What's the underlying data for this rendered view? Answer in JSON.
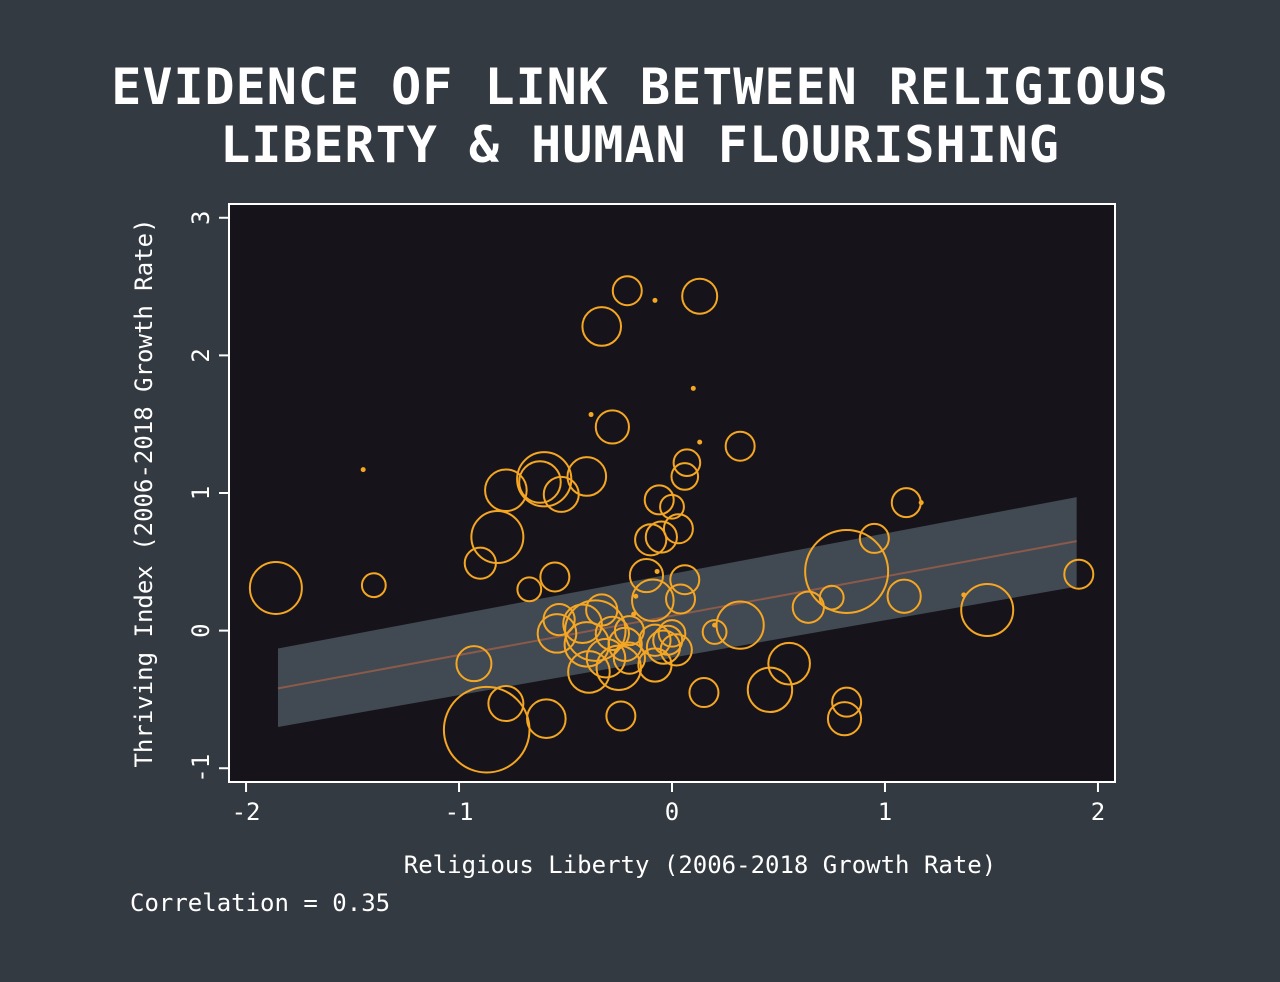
{
  "title": {
    "line1": "EVIDENCE OF LINK BETWEEN RELIGIOUS",
    "line2": "LIBERTY & HUMAN FLOURISHING"
  },
  "footer": {
    "correlation": "Correlation = 0.35"
  },
  "colors": {
    "background": "#343a42",
    "plot_background": "#16141a",
    "marker": "#f5a623",
    "trend_line": "#8a5a4a",
    "confidence_band": "#414952",
    "axis": "#ffffff"
  },
  "chart_data": {
    "type": "scatter",
    "title": "EVIDENCE OF LINK BETWEEN RELIGIOUS LIBERTY & HUMAN FLOURISHING",
    "xlabel": "Religious Liberty (2006-2018 Growth Rate)",
    "ylabel": "Thriving Index (2006-2018 Growth Rate)",
    "xlim": [
      -2.08,
      2.08
    ],
    "ylim": [
      -1.1,
      3.1
    ],
    "xticks": [
      -2,
      -1,
      0,
      1,
      2
    ],
    "yticks": [
      -1,
      0,
      1,
      2,
      3
    ],
    "xtick_labels": [
      "-2",
      "-1",
      "0",
      "1",
      "2"
    ],
    "ytick_labels": [
      "-1",
      "0",
      "1",
      "2",
      "3"
    ],
    "grid": false,
    "legend": "none",
    "marker": "hollow circle, size weighted",
    "correlation": 0.35,
    "trend_line": {
      "x": [
        -1.85,
        1.9
      ],
      "y": [
        -0.42,
        0.65
      ]
    },
    "confidence_band": {
      "x": [
        -1.85,
        1.9
      ],
      "lower": [
        -0.7,
        0.32
      ],
      "upper": [
        -0.13,
        0.97
      ]
    },
    "points": [
      {
        "x": -1.86,
        "y": 0.31,
        "size": 1.0
      },
      {
        "x": -1.45,
        "y": 1.17,
        "size": 0.1
      },
      {
        "x": -1.4,
        "y": 0.33,
        "size": 0.15
      },
      {
        "x": -0.87,
        "y": -0.72,
        "size": 3.0
      },
      {
        "x": -0.78,
        "y": -0.53,
        "size": 0.4
      },
      {
        "x": -0.93,
        "y": -0.24,
        "size": 0.4
      },
      {
        "x": -0.9,
        "y": 0.49,
        "size": 0.3
      },
      {
        "x": -0.82,
        "y": 0.68,
        "size": 1.0
      },
      {
        "x": -0.78,
        "y": 1.02,
        "size": 0.6
      },
      {
        "x": -0.6,
        "y": 1.1,
        "size": 1.1
      },
      {
        "x": -0.62,
        "y": 1.08,
        "size": 0.6
      },
      {
        "x": -0.52,
        "y": 0.99,
        "size": 0.4
      },
      {
        "x": -0.67,
        "y": 0.3,
        "size": 0.15
      },
      {
        "x": -0.55,
        "y": 0.39,
        "size": 0.25
      },
      {
        "x": -0.59,
        "y": -0.64,
        "size": 0.5
      },
      {
        "x": -0.53,
        "y": 0.08,
        "size": 0.3
      },
      {
        "x": -0.54,
        "y": -0.02,
        "size": 0.5
      },
      {
        "x": -0.42,
        "y": 0.05,
        "size": 0.5
      },
      {
        "x": -0.4,
        "y": -0.1,
        "size": 0.7
      },
      {
        "x": -0.39,
        "y": -0.3,
        "size": 0.6
      },
      {
        "x": -0.36,
        "y": 0.0,
        "size": 1.4
      },
      {
        "x": -0.33,
        "y": 0.15,
        "size": 0.3
      },
      {
        "x": -0.31,
        "y": -0.2,
        "size": 0.5
      },
      {
        "x": -0.28,
        "y": -0.02,
        "size": 0.35
      },
      {
        "x": -0.25,
        "y": -0.27,
        "size": 0.7
      },
      {
        "x": -0.22,
        "y": -0.1,
        "size": 0.35
      },
      {
        "x": -0.2,
        "y": -0.2,
        "size": 0.3
      },
      {
        "x": -0.2,
        "y": 0.0,
        "size": 0.25
      },
      {
        "x": -0.24,
        "y": -0.62,
        "size": 0.25
      },
      {
        "x": -0.4,
        "y": 1.12,
        "size": 0.5
      },
      {
        "x": -0.28,
        "y": 1.48,
        "size": 0.35
      },
      {
        "x": -0.38,
        "y": 1.57,
        "size": 0.1
      },
      {
        "x": -0.33,
        "y": 2.21,
        "size": 0.5
      },
      {
        "x": -0.21,
        "y": 2.47,
        "size": 0.25
      },
      {
        "x": -0.08,
        "y": 2.4,
        "size": 0.1
      },
      {
        "x": 0.13,
        "y": 2.43,
        "size": 0.4
      },
      {
        "x": 0.1,
        "y": 1.76,
        "size": 0.1
      },
      {
        "x": 0.13,
        "y": 1.37,
        "size": 0.1
      },
      {
        "x": 0.32,
        "y": 1.34,
        "size": 0.25
      },
      {
        "x": 0.07,
        "y": 1.22,
        "size": 0.2
      },
      {
        "x": 0.06,
        "y": 1.12,
        "size": 0.2
      },
      {
        "x": -0.06,
        "y": 0.95,
        "size": 0.25
      },
      {
        "x": 0.0,
        "y": 0.9,
        "size": 0.15
      },
      {
        "x": 0.03,
        "y": 0.74,
        "size": 0.25
      },
      {
        "x": -0.05,
        "y": 0.68,
        "size": 0.3
      },
      {
        "x": -0.1,
        "y": 0.66,
        "size": 0.3
      },
      {
        "x": -0.07,
        "y": 0.43,
        "size": 0.1
      },
      {
        "x": -0.12,
        "y": 0.4,
        "size": 0.35
      },
      {
        "x": 0.06,
        "y": 0.37,
        "size": 0.25
      },
      {
        "x": -0.17,
        "y": 0.25,
        "size": 0.1
      },
      {
        "x": -0.09,
        "y": 0.22,
        "size": 0.6
      },
      {
        "x": 0.04,
        "y": 0.23,
        "size": 0.25
      },
      {
        "x": -0.18,
        "y": 0.12,
        "size": 0.1
      },
      {
        "x": -0.08,
        "y": -0.07,
        "size": 0.3
      },
      {
        "x": -0.04,
        "y": -0.12,
        "size": 0.35
      },
      {
        "x": -0.02,
        "y": -0.07,
        "size": 0.25
      },
      {
        "x": 0.02,
        "y": -0.14,
        "size": 0.3
      },
      {
        "x": -0.08,
        "y": -0.25,
        "size": 0.35
      },
      {
        "x": 0.0,
        "y": -0.02,
        "size": 0.2
      },
      {
        "x": 0.2,
        "y": -0.01,
        "size": 0.15
      },
      {
        "x": 0.2,
        "y": 0.04,
        "size": 0.1
      },
      {
        "x": 0.32,
        "y": 0.04,
        "size": 0.8
      },
      {
        "x": 0.15,
        "y": -0.45,
        "size": 0.25
      },
      {
        "x": 0.46,
        "y": -0.43,
        "size": 0.7
      },
      {
        "x": 0.55,
        "y": -0.24,
        "size": 0.6
      },
      {
        "x": 0.64,
        "y": 0.17,
        "size": 0.3
      },
      {
        "x": 0.75,
        "y": 0.24,
        "size": 0.15
      },
      {
        "x": 0.82,
        "y": 0.43,
        "size": 2.8
      },
      {
        "x": 0.95,
        "y": 0.67,
        "size": 0.25
      },
      {
        "x": 0.82,
        "y": -0.52,
        "size": 0.25
      },
      {
        "x": 0.81,
        "y": -0.64,
        "size": 0.35
      },
      {
        "x": 1.1,
        "y": 0.93,
        "size": 0.25
      },
      {
        "x": 1.17,
        "y": 0.93,
        "size": 0.1
      },
      {
        "x": 1.09,
        "y": 0.25,
        "size": 0.35
      },
      {
        "x": 1.37,
        "y": 0.26,
        "size": 0.1
      },
      {
        "x": 1.48,
        "y": 0.15,
        "size": 1.0
      },
      {
        "x": 1.91,
        "y": 0.41,
        "size": 0.25
      }
    ]
  }
}
